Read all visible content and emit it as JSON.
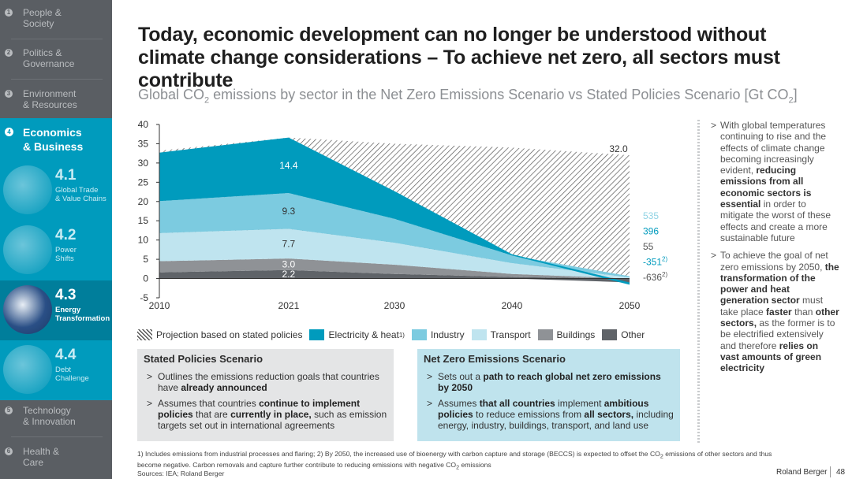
{
  "sidebar": {
    "sections": [
      {
        "num": "1",
        "label": "People &\nSociety"
      },
      {
        "num": "2",
        "label": "Politics &\nGovernance"
      },
      {
        "num": "3",
        "label": "Environment\n& Resources"
      },
      {
        "num": "4",
        "label": "Economics\n& Business"
      },
      {
        "num": "5",
        "label": "Technology\n& Innovation"
      },
      {
        "num": "6",
        "label": "Health &\nCare"
      }
    ],
    "subsections": [
      {
        "num": "4.1",
        "label": "Global Trade\n& Value Chains"
      },
      {
        "num": "4.2",
        "label": "Power\nShifts"
      },
      {
        "num": "4.3",
        "label": "Energy\nTransformation"
      },
      {
        "num": "4.4",
        "label": "Debt\nChallenge"
      }
    ]
  },
  "header": {
    "title": "Today, economic development can no longer be understood without climate change considerations – To achieve net zero, all sectors must contribute",
    "subtitle_a": "Global CO",
    "subtitle_b": "2",
    "subtitle_c": " emissions by sector in the Net Zero Emissions Scenario vs Stated Policies Scenario [Gt CO",
    "subtitle_d": "2",
    "subtitle_e": "]"
  },
  "colors": {
    "electricity": "#009bbd",
    "industry": "#7ccbe0",
    "transport": "#bfe4ef",
    "buildings": "#8f9296",
    "other": "#5f6368",
    "hatch": "#444444"
  },
  "chart_data": {
    "type": "area",
    "title": "Global CO2 emissions by sector in the Net Zero Emissions Scenario vs Stated Policies Scenario [Gt CO2]",
    "x": [
      2010,
      2021,
      2030,
      2040,
      2050
    ],
    "xlim": [
      2010,
      2050
    ],
    "ylim": [
      -5,
      40
    ],
    "yticks": [
      -5,
      0,
      5,
      10,
      15,
      20,
      25,
      30,
      35,
      40
    ],
    "xticks": [
      "2010",
      "2021",
      "2030",
      "2040",
      "2050"
    ],
    "series": [
      {
        "name": "Other",
        "key": "other",
        "values": [
          1.6,
          2.2,
          1.2,
          0.4,
          -1.0
        ]
      },
      {
        "name": "Buildings",
        "key": "buildings",
        "values": [
          2.9,
          3.0,
          2.4,
          0.8,
          0.0
        ]
      },
      {
        "name": "Transport",
        "key": "transport",
        "values": [
          7.3,
          7.7,
          5.7,
          2.8,
          0.3
        ]
      },
      {
        "name": "Industry",
        "key": "industry",
        "values": [
          8.3,
          9.3,
          6.2,
          2.0,
          0.3
        ]
      },
      {
        "name": "Electricity & heat",
        "key": "electricity",
        "values": [
          12.6,
          14.4,
          7.2,
          0.3,
          -0.6
        ]
      }
    ],
    "stated_policies_total": [
      33.2,
      36.6,
      35.0,
      34.0,
      32.0
    ],
    "labels_2021": [
      {
        "series": "Electricity & heat",
        "text": "14.4"
      },
      {
        "series": "Industry",
        "text": "9.3"
      },
      {
        "series": "Transport",
        "text": "7.7"
      },
      {
        "series": "Buildings",
        "text": "3.0"
      },
      {
        "series": "Other",
        "text": "2.2"
      }
    ],
    "total_label_2050": "32.0",
    "labels_2050": [
      {
        "text": "535",
        "key": "industry"
      },
      {
        "text": "396",
        "key": "electricity"
      },
      {
        "text": "55",
        "key": "other"
      },
      {
        "text": "-351",
        "sup": "2)",
        "key": "electricity"
      },
      {
        "text": "-636",
        "sup": "2)",
        "key": "other"
      }
    ],
    "legend": [
      {
        "key": "hatch",
        "label": "Projection based on stated policies",
        "sup": ""
      },
      {
        "key": "electricity",
        "label": "Electricity & heat",
        "sup": "1)"
      },
      {
        "key": "industry",
        "label": "Industry",
        "sup": ""
      },
      {
        "key": "transport",
        "label": "Transport",
        "sup": ""
      },
      {
        "key": "buildings",
        "label": "Buildings",
        "sup": ""
      },
      {
        "key": "other",
        "label": "Other",
        "sup": ""
      }
    ]
  },
  "stated": {
    "title": "Stated Policies Scenario",
    "p1a": "Outlines the emissions reduction goals that countries have ",
    "p1b": "already announced",
    "p2a": "Assumes that countries ",
    "p2b": "continue to implement policies",
    "p2c": " that are ",
    "p2d": "currently in place,",
    "p2e": " such as emission targets set out in international agreements"
  },
  "netzero": {
    "title": "Net Zero Emissions Scenario",
    "p1a": "Sets out a ",
    "p1b": "path to reach global net zero emissions by 2050",
    "p2a": "Assumes ",
    "p2b": "that all countries",
    "p2c": " implement ",
    "p2d": "ambitious policies",
    "p2e": " to reduce emissions from ",
    "p2f": "all sectors,",
    "p2g": " including energy, industry, buildings, transport, and land use"
  },
  "notes": {
    "n1a": "With global temperatures continuing to rise and the effects of climate change becoming increasingly evident, ",
    "n1b": "reducing emissions from all economic sectors is essential",
    "n1c": " in order to mitigate the worst of these effects and create a more sustainable future",
    "n2a": "To achieve the goal of net zero emissions by 2050, ",
    "n2b": "the transformation of the power and heat generation sector",
    "n2c": " must take place ",
    "n2d": "faster",
    "n2e": " than ",
    "n2f": "other sectors,",
    "n2g": " as the former is to be electrified extensively and therefore ",
    "n2h": "relies on vast amounts of green electricity"
  },
  "footer": {
    "footnote1": "1) Includes emissions from industrial processes and flaring;  2) By 2050, the increased use of bioenergy with carbon capture and storage (BECCS) is expected to offset the CO",
    "footnote1_sub": "2",
    "footnote2": " emissions of other sectors and thus become negative. Carbon removals and capture further contribute to reducing emissions with negative CO",
    "footnote2_sub": "2",
    "footnote3": " emissions",
    "sources": "Sources: IEA; Roland Berger",
    "brand": "Roland Berger",
    "page": "48"
  }
}
